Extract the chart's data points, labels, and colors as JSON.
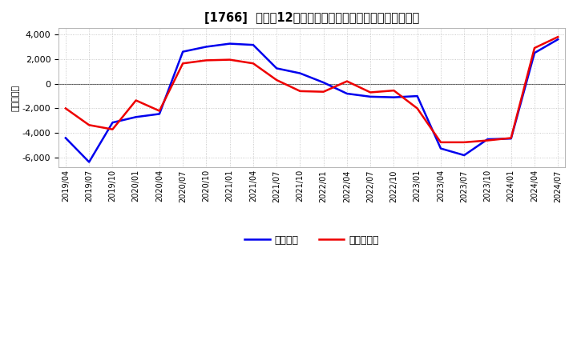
{
  "title": "[  1766  ]  利益の12か月移動合計の対前年同期増減額の推移",
  "title_plain": "[1766]  利益の12か月移動合計の対前年同期増減額の推移",
  "ylabel": "（百万円）",
  "ylim": [
    -6800,
    4500
  ],
  "yticks": [
    -6000,
    -4000,
    -2000,
    0,
    2000,
    4000
  ],
  "legend_labels": [
    "経常利益",
    "当期純利益"
  ],
  "blue_color": "#0000EE",
  "red_color": "#EE0000",
  "x_labels": [
    "2019/04",
    "2019/07",
    "2019/10",
    "2020/01",
    "2020/04",
    "2020/07",
    "2020/10",
    "2021/01",
    "2021/04",
    "2021/07",
    "2021/10",
    "2022/01",
    "2022/04",
    "2022/07",
    "2022/10",
    "2023/01",
    "2023/04",
    "2023/07",
    "2023/10",
    "2024/01",
    "2024/04",
    "2024/07"
  ],
  "blue_y": [
    -4400,
    -6350,
    -3150,
    -2700,
    -2450,
    2600,
    3000,
    3250,
    3150,
    1250,
    850,
    100,
    -800,
    -1050,
    -1100,
    -1000,
    -5250,
    -5800,
    -4500,
    -4450,
    2500,
    3600
  ],
  "red_y": [
    -2000,
    -3350,
    -3700,
    -1350,
    -2200,
    1650,
    1900,
    1950,
    1650,
    300,
    -600,
    -650,
    200,
    -700,
    -550,
    -2000,
    -4750,
    -4750,
    -4600,
    -4400,
    2900,
    3800
  ]
}
